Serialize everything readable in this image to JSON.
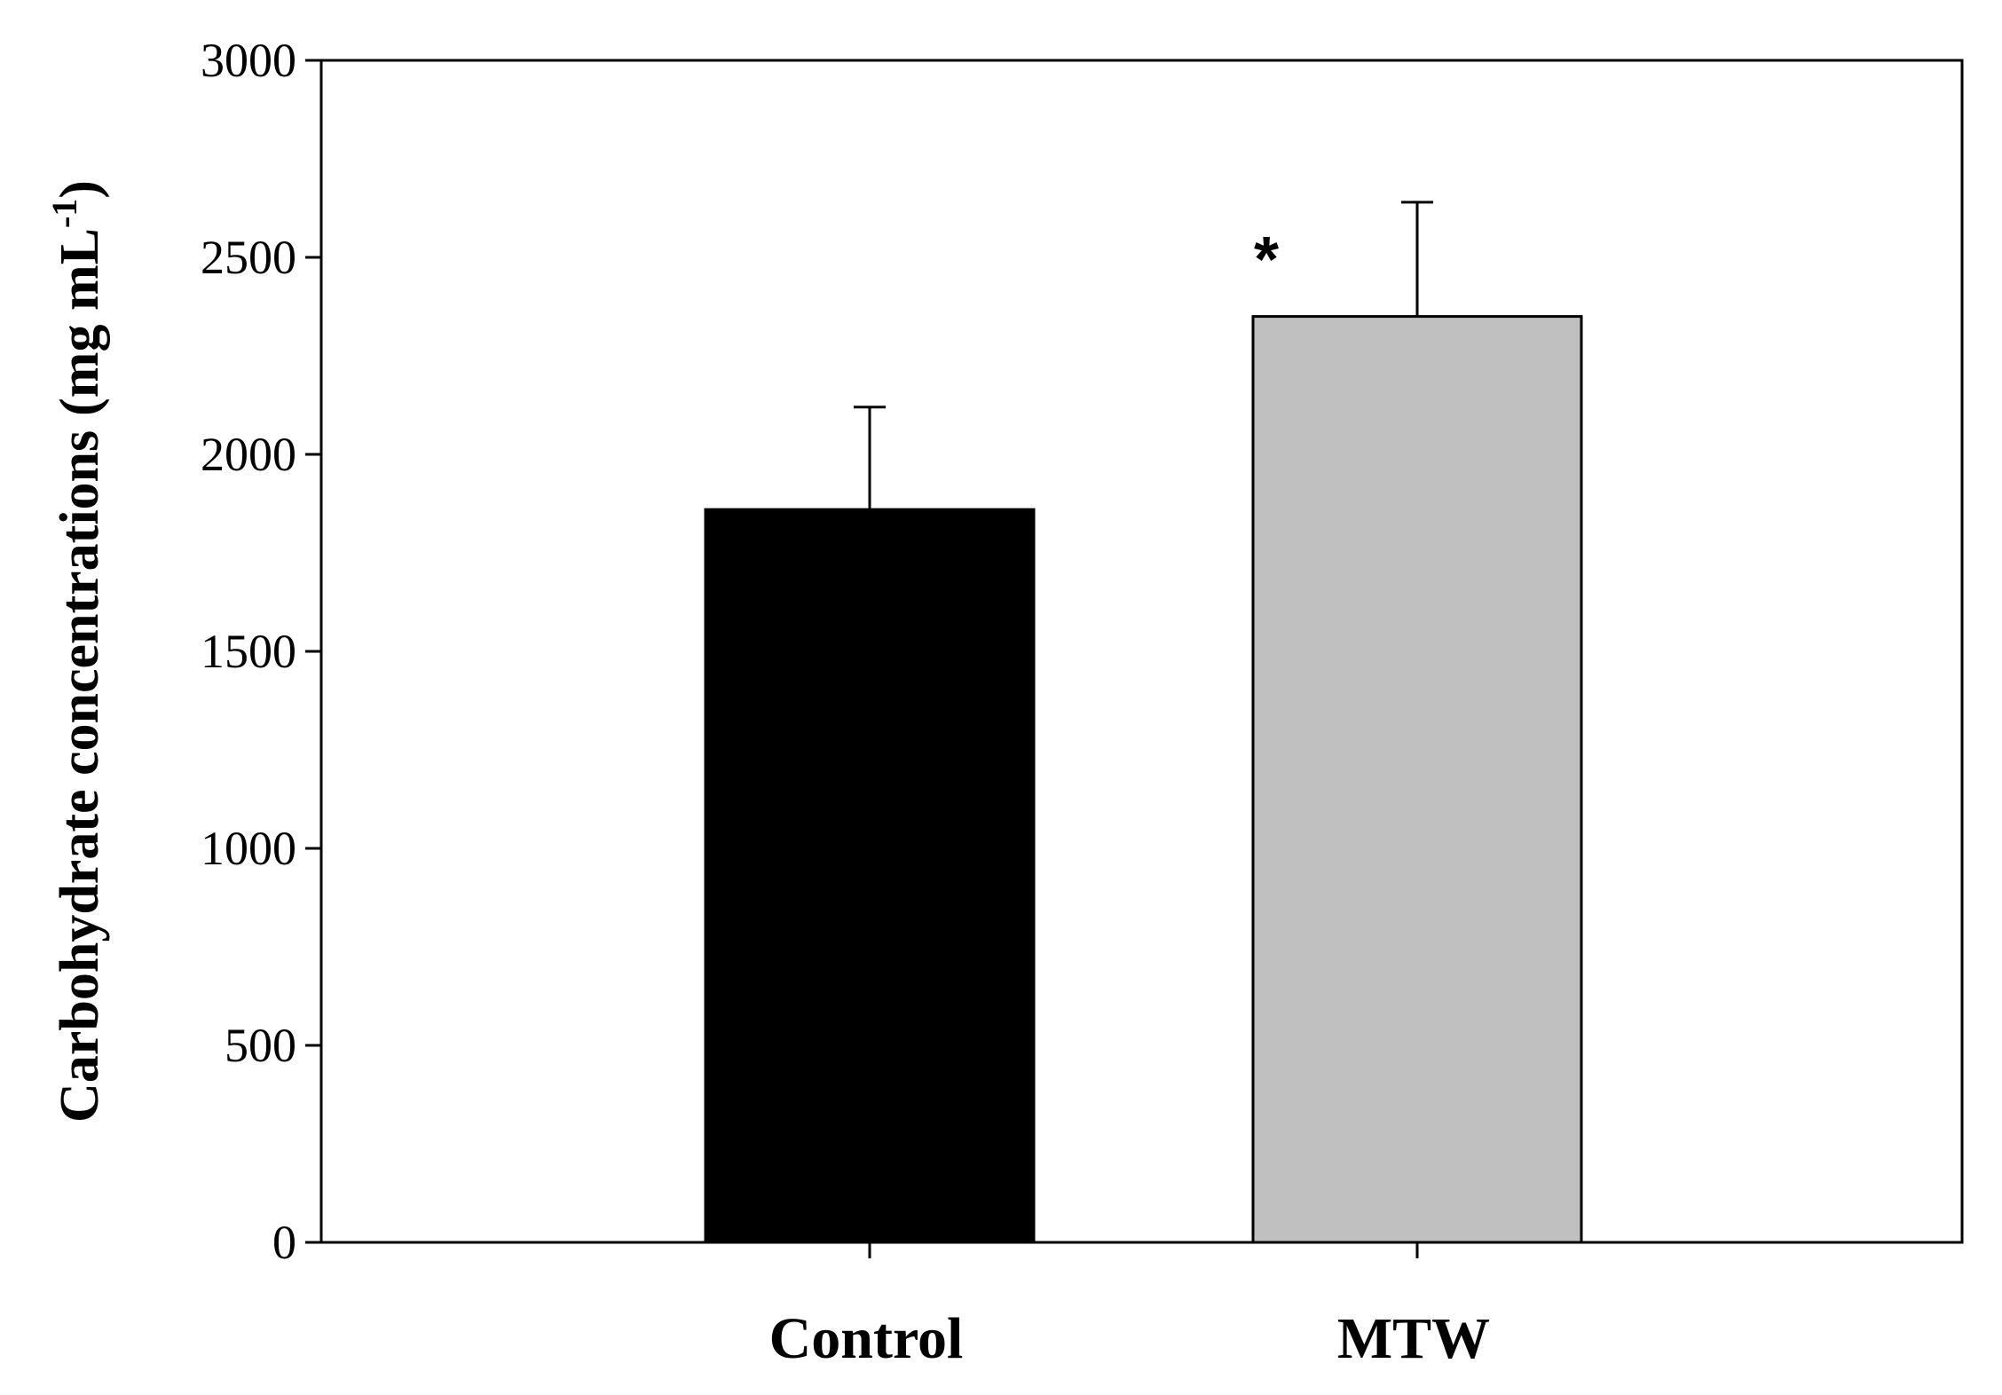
{
  "chart_data": {
    "type": "bar",
    "title": "",
    "xlabel": "",
    "ylabel": {
      "main": "Carbohydrate concentrations",
      "unit_prefix": "(mg mL",
      "unit_superscript": "-1",
      "unit_suffix": ")"
    },
    "categories": [
      "Control",
      "MTW"
    ],
    "values": [
      1860,
      2350
    ],
    "error_plus": [
      260,
      290
    ],
    "bar_colors": [
      "#000000",
      "#c0c0c0"
    ],
    "significance": [
      {
        "category": "MTW",
        "mark": "*"
      }
    ],
    "ylim": [
      0,
      3000
    ],
    "yticks": [
      0,
      500,
      1000,
      1500,
      2000,
      2500,
      3000
    ],
    "ytick_labels": [
      "0",
      "500",
      "1000",
      "1500",
      "2000",
      "2500",
      "3000"
    ],
    "grid": false,
    "legend": "none"
  }
}
